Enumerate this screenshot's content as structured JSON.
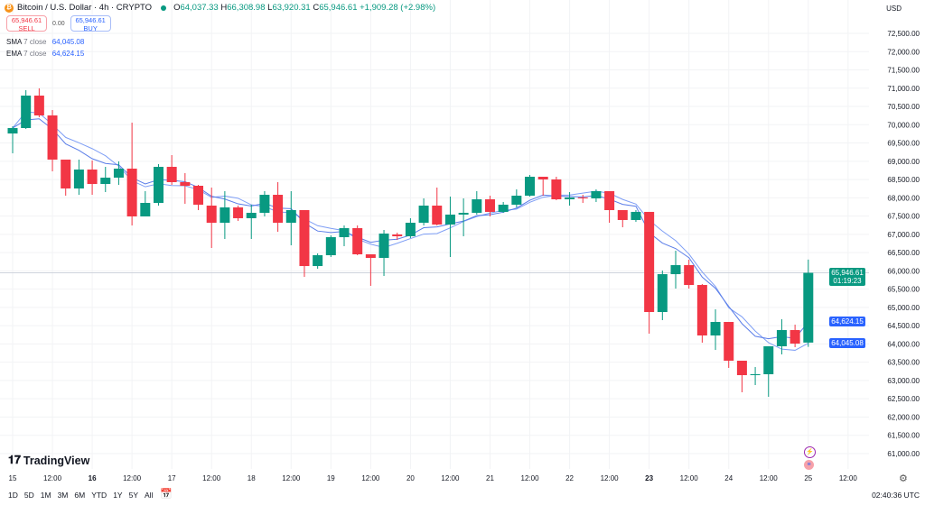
{
  "header": {
    "symbol": "Bitcoin / U.S. Dollar · 4h · CRYPTO",
    "o_label": "O",
    "o": "64,037.33",
    "h_label": "H",
    "h": "66,308.98",
    "l_label": "L",
    "l": "63,920.31",
    "c_label": "C",
    "c": "65,946.61",
    "change": "+1,909.28 (+2.98%)"
  },
  "trade": {
    "sell_price": "65,946.61",
    "sell_label": "SELL",
    "spread": "0.00",
    "buy_price": "65,946.61",
    "buy_label": "BUY"
  },
  "indicators": [
    {
      "name": "SMA",
      "params": "7 close",
      "value": "64,045.08",
      "color": "#7e9ef5"
    },
    {
      "name": "EMA",
      "params": "7 close",
      "value": "64,624.15",
      "color": "#5a7de8"
    }
  ],
  "currency": "USD",
  "badges": {
    "price": "65,946.61",
    "countdown": "01:19:23",
    "ema": "64,624.15",
    "sma": "64,045.08"
  },
  "colors": {
    "up": "#089981",
    "down": "#f23645",
    "accent": "#2962ff"
  },
  "logo": "TradingView",
  "ranges": [
    "1D",
    "5D",
    "1M",
    "3M",
    "6M",
    "YTD",
    "1Y",
    "5Y",
    "All"
  ],
  "clock": "02:40:36 UTC",
  "chart_data": {
    "type": "candlestick",
    "interval": "4h",
    "ylim": [
      60750,
      73000
    ],
    "grid": true,
    "y_ticks": [
      "72,500.00",
      "72,000.00",
      "71,500.00",
      "71,000.00",
      "70,500.00",
      "70,000.00",
      "69,500.00",
      "69,000.00",
      "68,500.00",
      "68,000.00",
      "67,500.00",
      "67,000.00",
      "66,500.00",
      "66,000.00",
      "65,500.00",
      "65,000.00",
      "64,500.00",
      "64,000.00",
      "63,500.00",
      "63,000.00",
      "62,500.00",
      "62,000.00",
      "61,500.00",
      "61,000.00"
    ],
    "x_ticks": [
      {
        "label": "15",
        "bold": false
      },
      {
        "label": "12:00",
        "bold": false
      },
      {
        "label": "16",
        "bold": true
      },
      {
        "label": "12:00",
        "bold": false
      },
      {
        "label": "17",
        "bold": false
      },
      {
        "label": "12:00",
        "bold": false
      },
      {
        "label": "18",
        "bold": false
      },
      {
        "label": "12:00",
        "bold": false
      },
      {
        "label": "19",
        "bold": false
      },
      {
        "label": "12:00",
        "bold": false
      },
      {
        "label": "20",
        "bold": false
      },
      {
        "label": "12:00",
        "bold": false
      },
      {
        "label": "21",
        "bold": false
      },
      {
        "label": "12:00",
        "bold": false
      },
      {
        "label": "22",
        "bold": false
      },
      {
        "label": "12:00",
        "bold": false
      },
      {
        "label": "23",
        "bold": true
      },
      {
        "label": "12:00",
        "bold": false
      },
      {
        "label": "24",
        "bold": false
      },
      {
        "label": "12:00",
        "bold": false
      },
      {
        "label": "25",
        "bold": false
      },
      {
        "label": "12:00",
        "bold": false
      }
    ],
    "candles_ohlc": [
      [
        69760,
        69958,
        69218,
        69909
      ],
      [
        69909,
        70945,
        69884,
        70797
      ],
      [
        70797,
        70995,
        70205,
        70254
      ],
      [
        70254,
        70402,
        68724,
        69045
      ],
      [
        69045,
        69045,
        68058,
        68255
      ],
      [
        68255,
        69045,
        68082,
        68773
      ],
      [
        68773,
        69020,
        68082,
        68378
      ],
      [
        68378,
        68847,
        68156,
        68551
      ],
      [
        68551,
        68996,
        68354,
        68798
      ],
      [
        68798,
        70057,
        67243,
        67490
      ],
      [
        67490,
        68181,
        67490,
        67860
      ],
      [
        67860,
        68921,
        67786,
        68847
      ],
      [
        68847,
        69168,
        68354,
        68428
      ],
      [
        68428,
        68675,
        67836,
        68329
      ],
      [
        68329,
        68354,
        67663,
        67811
      ],
      [
        67786,
        68280,
        66626,
        67317
      ],
      [
        67317,
        68181,
        66873,
        67737
      ],
      [
        67737,
        67786,
        67367,
        67441
      ],
      [
        67441,
        67811,
        66873,
        67589
      ],
      [
        67589,
        68181,
        67490,
        68082
      ],
      [
        68082,
        68428,
        67070,
        67317
      ],
      [
        67317,
        68181,
        66700,
        67663
      ],
      [
        67663,
        67663,
        65836,
        66132
      ],
      [
        66132,
        66478,
        66058,
        66429
      ],
      [
        66429,
        66972,
        66379,
        66922
      ],
      [
        66922,
        67243,
        66675,
        67169
      ],
      [
        67169,
        67243,
        66429,
        66453
      ],
      [
        66453,
        66453,
        65590,
        66355
      ],
      [
        66355,
        67120,
        65861,
        67021
      ],
      [
        66996,
        67046,
        66848,
        66947
      ],
      [
        66947,
        67441,
        66898,
        67317
      ],
      [
        67317,
        67984,
        67243,
        67786
      ],
      [
        67786,
        68280,
        67243,
        67268
      ],
      [
        67268,
        68033,
        66379,
        67540
      ],
      [
        67540,
        67984,
        66947,
        67589
      ],
      [
        67589,
        68181,
        67540,
        67959
      ],
      [
        67959,
        68058,
        67490,
        67614
      ],
      [
        67614,
        67885,
        67589,
        67811
      ],
      [
        67811,
        68230,
        67737,
        68058
      ],
      [
        68058,
        68625,
        68033,
        68576
      ],
      [
        68576,
        68576,
        68058,
        68502
      ],
      [
        68502,
        68576,
        67934,
        67959
      ],
      [
        67959,
        68156,
        67786,
        68008
      ],
      [
        68008,
        68082,
        67860,
        67984
      ],
      [
        67984,
        68230,
        67885,
        68181
      ],
      [
        68181,
        68181,
        67317,
        67663
      ],
      [
        67663,
        67663,
        67194,
        67392
      ],
      [
        67392,
        67663,
        67342,
        67614
      ],
      [
        67614,
        67614,
        64282,
        64874
      ],
      [
        64874,
        66009,
        64652,
        65910
      ],
      [
        65910,
        66552,
        65516,
        66157
      ],
      [
        66157,
        66305,
        65516,
        65614
      ],
      [
        65614,
        65639,
        64035,
        64232
      ],
      [
        64232,
        64948,
        63837,
        64602
      ],
      [
        64602,
        64602,
        63344,
        63541
      ],
      [
        63541,
        63541,
        62677,
        63146
      ],
      [
        63146,
        63368,
        62875,
        63171
      ],
      [
        63171,
        63936,
        62554,
        63936
      ],
      [
        63936,
        64676,
        63714,
        64380
      ],
      [
        64380,
        64528,
        63911,
        64010
      ],
      [
        64037.33,
        66308.98,
        63920.31,
        65946.61
      ]
    ]
  }
}
